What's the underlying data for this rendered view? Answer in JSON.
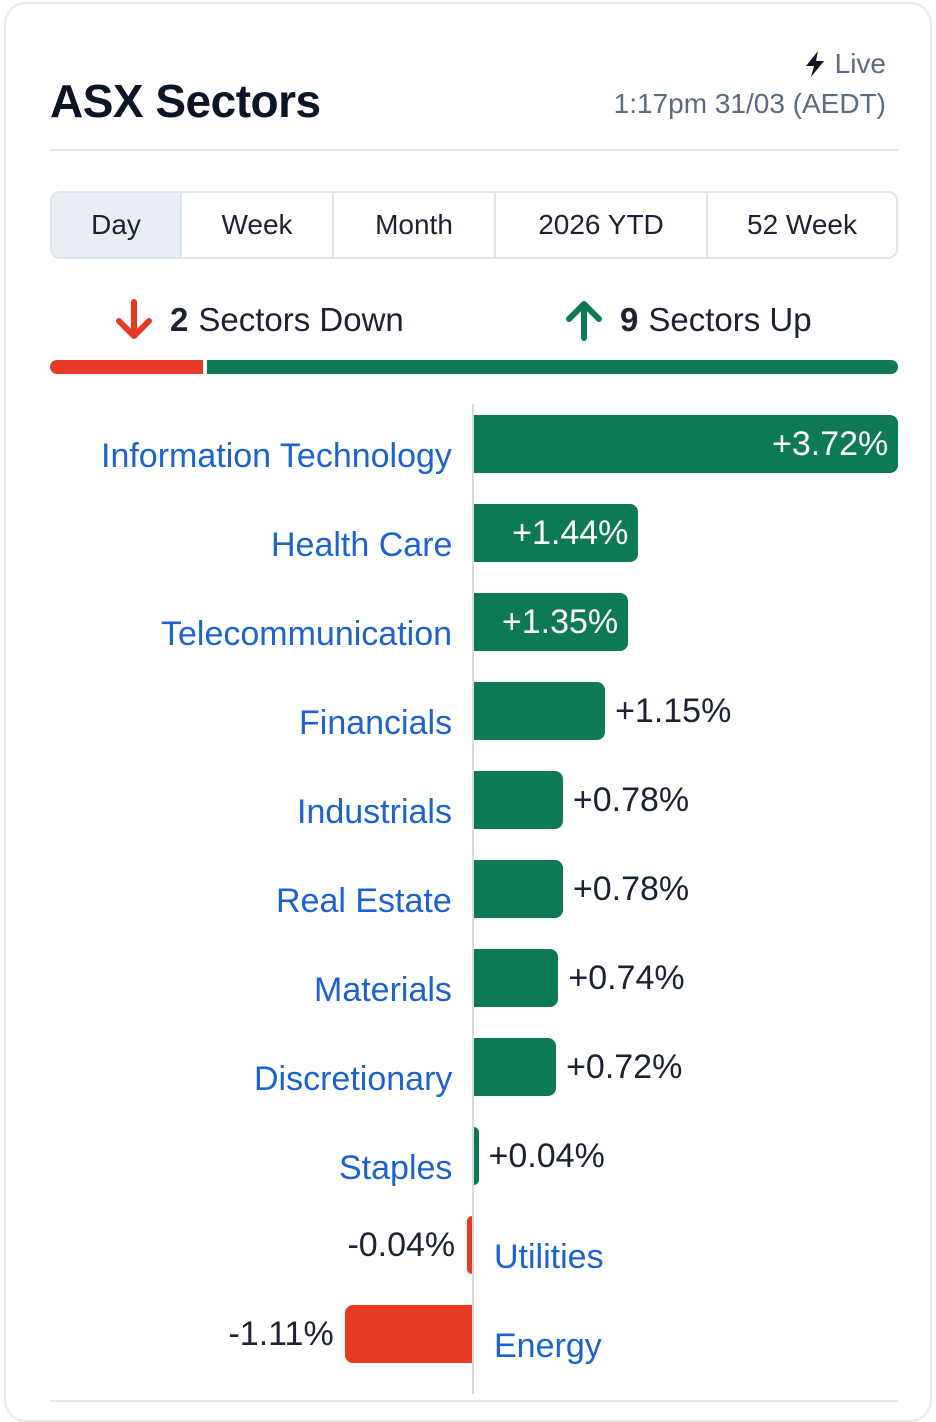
{
  "header": {
    "title": "ASX Sectors",
    "live_label": "Live",
    "timestamp": "1:17pm 31/03 (AEDT)"
  },
  "tabs": [
    {
      "label": "Day",
      "active": true
    },
    {
      "label": "Week",
      "active": false
    },
    {
      "label": "Month",
      "active": false
    },
    {
      "label": "2026 YTD",
      "active": false
    },
    {
      "label": "52 Week",
      "active": false
    }
  ],
  "summary": {
    "down_count": "2",
    "down_label": "Sectors Down",
    "up_count": "9",
    "up_label": "Sectors Up"
  },
  "colors": {
    "up": "#0e7a55",
    "down": "#e53a24",
    "label": "#1d62d1"
  },
  "chart_data": {
    "type": "bar",
    "orientation": "horizontal",
    "title": "ASX Sectors",
    "categories": [
      "Information Technology",
      "Health Care",
      "Telecommunication",
      "Financials",
      "Industrials",
      "Real Estate",
      "Materials",
      "Discretionary",
      "Staples",
      "Utilities",
      "Energy"
    ],
    "values": [
      3.72,
      1.44,
      1.35,
      1.15,
      0.78,
      0.78,
      0.74,
      0.72,
      0.04,
      -0.04,
      -1.11
    ],
    "value_labels": [
      "+3.72%",
      "+1.44%",
      "+1.35%",
      "+1.15%",
      "+0.78%",
      "+0.78%",
      "+0.74%",
      "+0.72%",
      "+0.04%",
      "-0.04%",
      "-1.11%"
    ],
    "unit": "%"
  }
}
